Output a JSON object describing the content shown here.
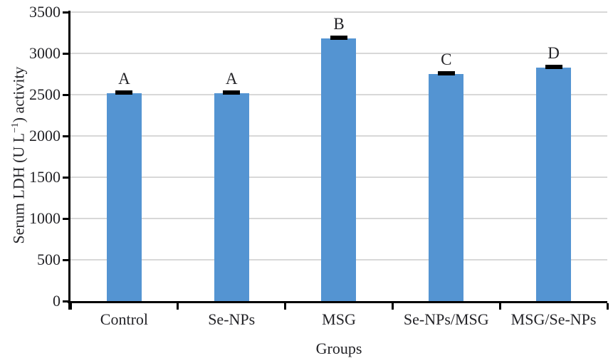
{
  "colors": {
    "bar": "#5494d2",
    "error_bar": "#000000",
    "gridline": "#d8d8d8",
    "axis": "#000000",
    "text": "#232327"
  },
  "chart_data": {
    "type": "bar",
    "title": "",
    "xlabel": "Groups",
    "ylabel": "Serum LDH (U L−1) activity",
    "ylabel_parts": {
      "prefix": "Serum LDH (U L",
      "superscript": "−1",
      "suffix": ") activity"
    },
    "categories": [
      "Control",
      "Se-NPs",
      "MSG",
      "Se-NPs/MSG",
      "MSG/Se-NPs"
    ],
    "values": [
      2520,
      2520,
      3180,
      2750,
      2830
    ],
    "errors": [
      25,
      25,
      20,
      25,
      20
    ],
    "bar_labels": [
      "A",
      "A",
      "B",
      "C",
      "D"
    ],
    "ylim": [
      0,
      3500
    ],
    "yticks": [
      0,
      500,
      1000,
      1500,
      2000,
      2500,
      3000,
      3500
    ],
    "grid": "horizontal",
    "legend": "none"
  }
}
